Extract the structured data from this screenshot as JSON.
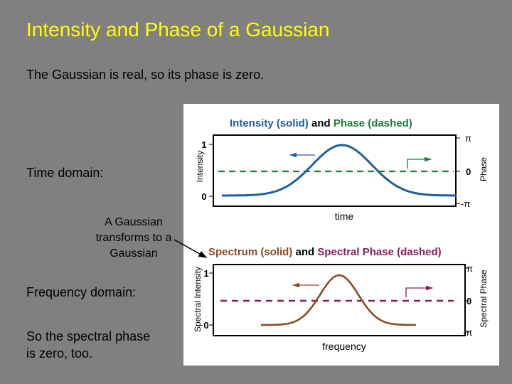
{
  "slide": {
    "title": "Intensity and Phase of a Gaussian",
    "intro": "The Gaussian is real, so its phase is zero.",
    "time_domain_label": "Time domain:",
    "callout": "A Gaussian transforms to a Gaussian",
    "frequency_domain_label": "Frequency domain:",
    "conclusion_line1": "So the spectral phase",
    "conclusion_line2": "is zero, too."
  },
  "colors": {
    "background": "#808080",
    "title": "#ffff00",
    "intensity": "#1f5fa0",
    "phase": "#1f7a3a",
    "spectrum": "#8a4a22",
    "spectral_phase": "#8a1a5a"
  },
  "chart_data": [
    {
      "type": "line",
      "title_part1": "Intensity (solid)",
      "title_part2": " and ",
      "title_part3": "Phase (dashed)",
      "xlabel": "time",
      "ylabel": "Intensity",
      "y2label": "Phase",
      "yticks": [
        "0",
        "1"
      ],
      "y2ticks": [
        "-π",
        "0",
        "π"
      ],
      "ylim": [
        -0.2,
        1.2
      ],
      "series": [
        {
          "name": "Intensity (solid)",
          "style": "solid",
          "shape": "gaussian",
          "peak": 1
        },
        {
          "name": "Phase (dashed)",
          "style": "dashed",
          "value": 0
        }
      ]
    },
    {
      "type": "line",
      "title_part1": "Spectrum (solid)",
      "title_part2": " and ",
      "title_part3": "Spectral Phase (dashed)",
      "xlabel": "frequency",
      "ylabel": "Spectral Intensity",
      "y2label": "Spectral Phase",
      "yticks": [
        "0",
        "1"
      ],
      "y2ticks": [
        "-π",
        "0",
        "π"
      ],
      "ylim": [
        -0.2,
        1.2
      ],
      "series": [
        {
          "name": "Spectrum (solid)",
          "style": "solid",
          "shape": "gaussian",
          "peak": 1
        },
        {
          "name": "Spectral Phase (dashed)",
          "style": "dashed",
          "value": 0
        }
      ]
    }
  ]
}
